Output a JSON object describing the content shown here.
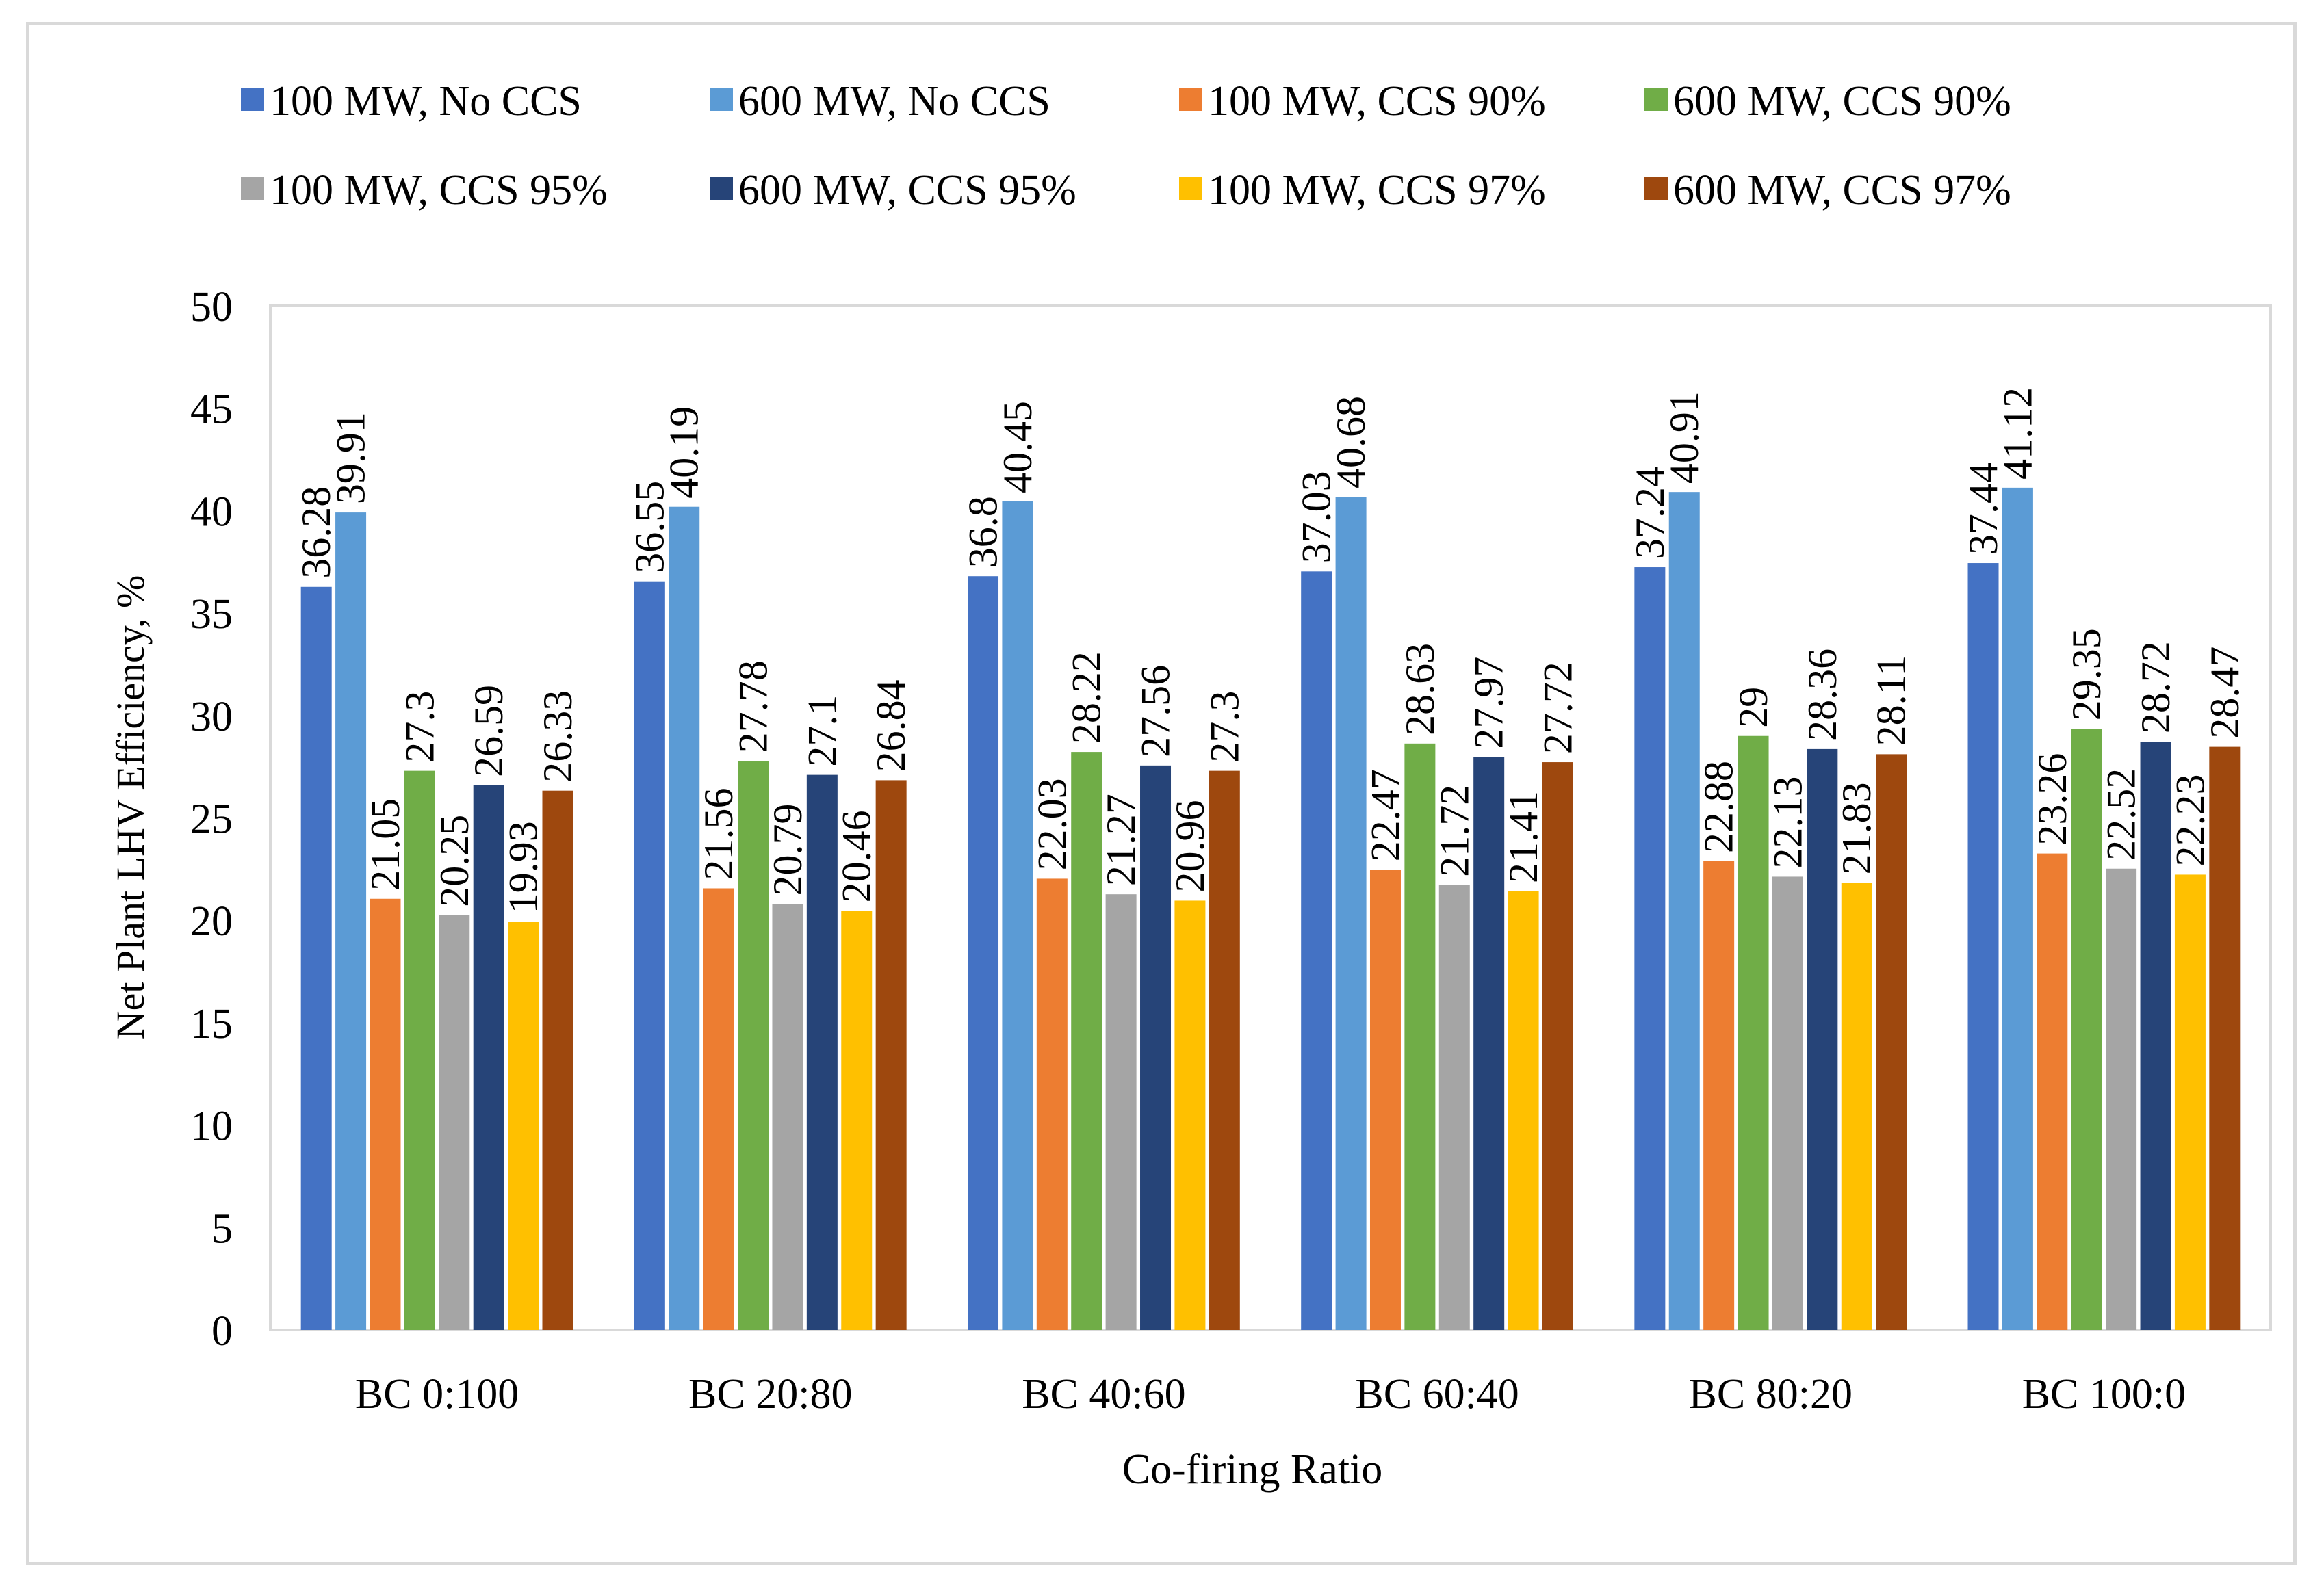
{
  "chart_data": {
    "type": "bar",
    "title": "",
    "xlabel": "Co-firing Ratio",
    "ylabel": "Net Plant LHV Efficiency, %",
    "ylim": [
      0,
      50
    ],
    "yticks": [
      "0",
      "5",
      "10",
      "15",
      "20",
      "25",
      "30",
      "35",
      "40",
      "45",
      "50"
    ],
    "grid": false,
    "legend_position": "top",
    "categories": [
      "BC 0:100",
      "BC 20:80",
      "BC 40:60",
      "BC 60:40",
      "BC 80:20",
      "BC 100:0"
    ],
    "series": [
      {
        "name": "100 MW, No CCS",
        "color": "#4472c4",
        "values": [
          36.28,
          36.55,
          36.8,
          37.03,
          37.24,
          37.44
        ],
        "labels": [
          "36.28",
          "36.55",
          "36.8",
          "37.03",
          "37.24",
          "37.44"
        ]
      },
      {
        "name": "600 MW, No CCS",
        "color": "#5b9bd5",
        "values": [
          39.91,
          40.19,
          40.45,
          40.68,
          40.91,
          41.12
        ],
        "labels": [
          "39.91",
          "40.19",
          "40.45",
          "40.68",
          "40.91",
          "41.12"
        ]
      },
      {
        "name": "100 MW, CCS 90%",
        "color": "#ed7d31",
        "values": [
          21.05,
          21.56,
          22.03,
          22.47,
          22.88,
          23.26
        ],
        "labels": [
          "21.05",
          "21.56",
          "22.03",
          "22.47",
          "22.88",
          "23.26"
        ]
      },
      {
        "name": "600 MW, CCS 90%",
        "color": "#70ad47",
        "values": [
          27.3,
          27.78,
          28.22,
          28.63,
          29,
          29.35
        ],
        "labels": [
          "27.3",
          "27.78",
          "28.22",
          "28.63",
          "29",
          "29.35"
        ]
      },
      {
        "name": "100 MW, CCS 95%",
        "color": "#a5a5a5",
        "values": [
          20.25,
          20.79,
          21.27,
          21.72,
          22.13,
          22.52
        ],
        "labels": [
          "20.25",
          "20.79",
          "21.27",
          "21.72",
          "22.13",
          "22.52"
        ]
      },
      {
        "name": "600 MW, CCS 95%",
        "color": "#264478",
        "values": [
          26.59,
          27.1,
          27.56,
          27.97,
          28.36,
          28.72
        ],
        "labels": [
          "26.59",
          "27.1",
          "27.56",
          "27.97",
          "28.36",
          "28.72"
        ]
      },
      {
        "name": "100 MW, CCS 97%",
        "color": "#ffc000",
        "values": [
          19.93,
          20.46,
          20.96,
          21.41,
          21.83,
          22.23
        ],
        "labels": [
          "19.93",
          "20.46",
          "20.96",
          "21.41",
          "21.83",
          "22.23"
        ]
      },
      {
        "name": "600 MW, CCS 97%",
        "color": "#9e480e",
        "values": [
          26.33,
          26.84,
          27.3,
          27.72,
          28.11,
          28.47
        ],
        "labels": [
          "26.33",
          "26.84",
          "27.3",
          "27.72",
          "28.11",
          "28.47"
        ]
      }
    ]
  }
}
